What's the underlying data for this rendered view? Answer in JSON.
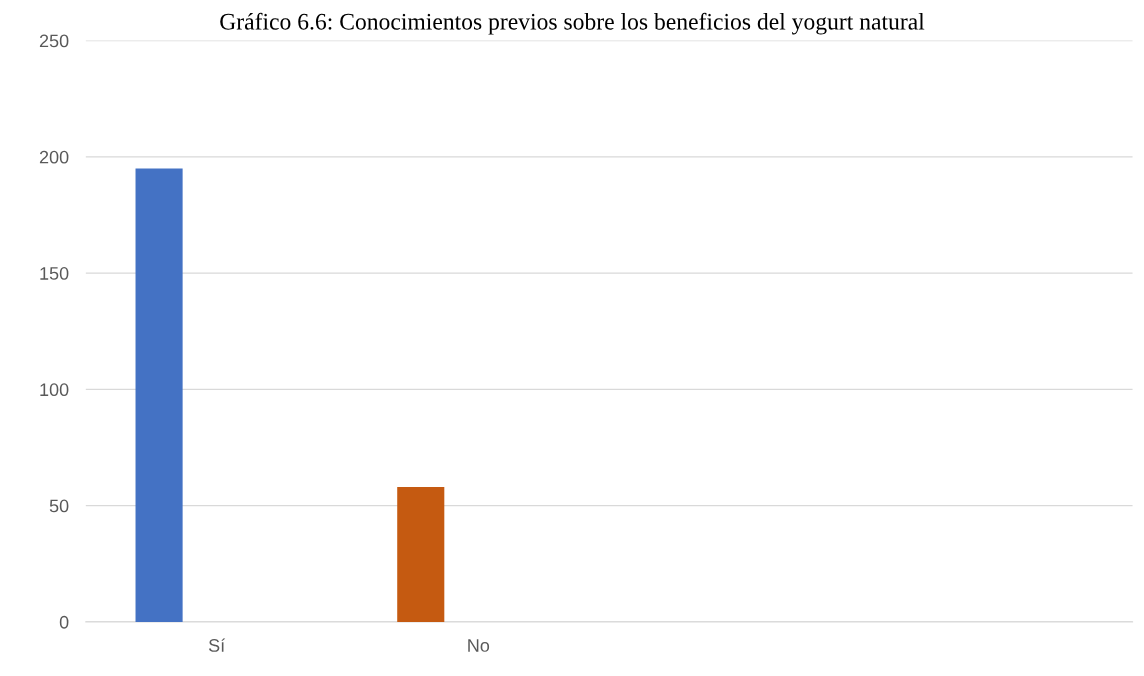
{
  "chart_data": {
    "type": "bar",
    "title": "Gráfico 6.6: Conocimientos previos sobre los beneficios del yogurt natural",
    "categories": [
      "Sí",
      "No",
      null,
      null
    ],
    "values": [
      195,
      58,
      null,
      null
    ],
    "colors": [
      "#4472c4",
      "#c55a11",
      "#4472c4",
      "#c55a11"
    ],
    "ylim": [
      0,
      250
    ],
    "yticks": [
      0,
      50,
      100,
      150,
      200,
      250
    ],
    "grid": "y"
  }
}
